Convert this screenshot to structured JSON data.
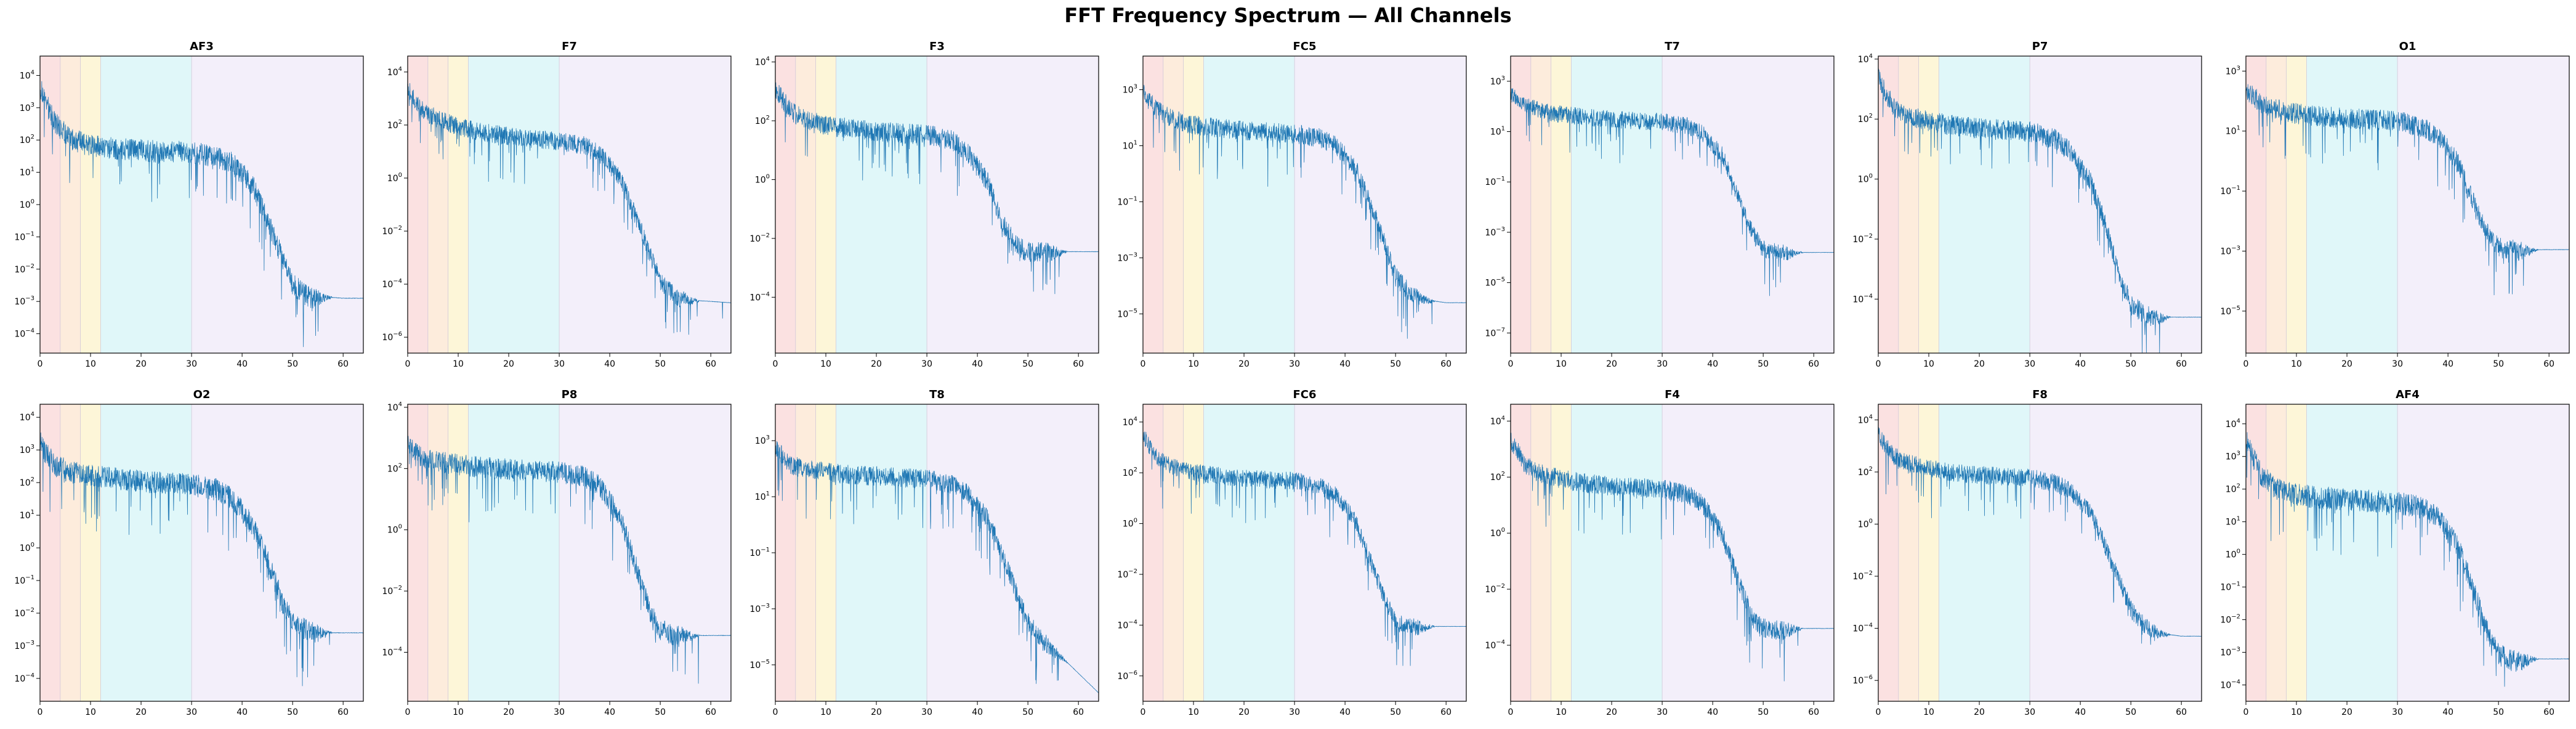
{
  "figure": {
    "title": "FFT Frequency Spectrum — All Channels"
  },
  "chart_data": {
    "type": "line",
    "yscale": "log",
    "xlim": [
      0,
      64
    ],
    "xticks": [
      0,
      10,
      20,
      30,
      40,
      50,
      60
    ],
    "grid": false,
    "line_color": "#1f77b4",
    "band_shading": [
      {
        "from": 0,
        "to": 4,
        "color": "#fbe1e1"
      },
      {
        "from": 4,
        "to": 8,
        "color": "#fdecdc"
      },
      {
        "from": 8,
        "to": 12,
        "color": "#fdf6d8"
      },
      {
        "from": 12,
        "to": 30,
        "color": "#e0f7f9"
      },
      {
        "from": 30,
        "to": 64,
        "color": "#f3effa"
      }
    ],
    "profile_x": [
      0,
      1,
      3,
      6,
      10,
      15,
      20,
      25,
      30,
      35,
      38,
      42,
      45,
      48,
      50,
      53,
      56,
      60,
      64
    ],
    "panels": [
      {
        "title": "AF3",
        "ylim_exp": [
          -4.6,
          4.6
        ],
        "yticks_exp": [
          -4,
          -3,
          -2,
          -1,
          0,
          1,
          2,
          3,
          4
        ],
        "profile_log_y": [
          3.7,
          3.3,
          2.6,
          2.1,
          1.9,
          1.8,
          1.75,
          1.7,
          1.7,
          1.55,
          1.35,
          0.7,
          -0.4,
          -1.6,
          -2.4,
          -2.8,
          -2.85,
          -2.9,
          -2.9
        ],
        "noise": 0.35
      },
      {
        "title": "F7",
        "ylim_exp": [
          -6.6,
          4.6
        ],
        "yticks_exp": [
          -6,
          -4,
          -2,
          0,
          2,
          4
        ],
        "profile_log_y": [
          3.5,
          3.1,
          2.6,
          2.3,
          2.0,
          1.8,
          1.65,
          1.55,
          1.45,
          1.3,
          1.0,
          0.1,
          -1.3,
          -2.8,
          -3.8,
          -4.4,
          -4.6,
          -4.65,
          -4.7
        ],
        "noise": 0.35
      },
      {
        "title": "F3",
        "ylim_exp": [
          -5.9,
          4.2
        ],
        "yticks_exp": [
          -4,
          -2,
          0,
          2,
          4
        ],
        "profile_log_y": [
          3.2,
          2.9,
          2.4,
          2.1,
          1.9,
          1.8,
          1.7,
          1.65,
          1.6,
          1.4,
          1.0,
          0.0,
          -1.4,
          -2.2,
          -2.4,
          -2.4,
          -2.45,
          -2.45,
          -2.45
        ],
        "noise": 0.35
      },
      {
        "title": "FC5",
        "ylim_exp": [
          -6.4,
          4.2
        ],
        "yticks_exp": [
          -5,
          -3,
          -1,
          1,
          3
        ],
        "profile_log_y": [
          3.0,
          2.7,
          2.3,
          2.0,
          1.8,
          1.7,
          1.6,
          1.55,
          1.5,
          1.35,
          1.1,
          0.3,
          -1.0,
          -2.5,
          -3.6,
          -4.2,
          -4.5,
          -4.6,
          -4.6
        ],
        "noise": 0.35
      },
      {
        "title": "T7",
        "ylim_exp": [
          -7.8,
          4.0
        ],
        "yticks_exp": [
          -7,
          -5,
          -3,
          -1,
          1,
          3
        ],
        "profile_log_y": [
          2.6,
          2.4,
          2.1,
          1.9,
          1.75,
          1.65,
          1.55,
          1.5,
          1.45,
          1.3,
          1.0,
          0.1,
          -1.5,
          -3.0,
          -3.6,
          -3.75,
          -3.8,
          -3.8,
          -3.8
        ],
        "noise": 0.35
      },
      {
        "title": "P7",
        "ylim_exp": [
          -5.8,
          4.1
        ],
        "yticks_exp": [
          -4,
          -2,
          0,
          2,
          4
        ],
        "profile_log_y": [
          3.5,
          3.1,
          2.5,
          2.2,
          2.0,
          1.85,
          1.75,
          1.7,
          1.65,
          1.4,
          1.0,
          0.0,
          -1.5,
          -3.3,
          -4.1,
          -4.5,
          -4.6,
          -4.6,
          -4.6
        ],
        "noise": 0.35
      },
      {
        "title": "O1",
        "ylim_exp": [
          -6.4,
          3.5
        ],
        "yticks_exp": [
          -5,
          -3,
          -1,
          1,
          3
        ],
        "profile_log_y": [
          2.5,
          2.3,
          2.0,
          1.8,
          1.65,
          1.55,
          1.5,
          1.45,
          1.4,
          1.2,
          0.9,
          0.0,
          -1.3,
          -2.4,
          -2.8,
          -2.9,
          -2.95,
          -2.95,
          -2.95
        ],
        "noise": 0.35
      },
      {
        "title": "O2",
        "ylim_exp": [
          -4.7,
          4.4
        ],
        "yticks_exp": [
          -4,
          -3,
          -2,
          -1,
          0,
          1,
          2,
          3,
          4
        ],
        "profile_log_y": [
          3.3,
          3.0,
          2.6,
          2.4,
          2.3,
          2.2,
          2.1,
          2.05,
          2.0,
          1.85,
          1.6,
          0.8,
          -0.3,
          -1.6,
          -2.2,
          -2.5,
          -2.6,
          -2.6,
          -2.6
        ],
        "noise": 0.35
      },
      {
        "title": "P8",
        "ylim_exp": [
          -5.6,
          4.1
        ],
        "yticks_exp": [
          -4,
          -2,
          0,
          2,
          4
        ],
        "profile_log_y": [
          2.9,
          2.7,
          2.4,
          2.3,
          2.2,
          2.1,
          2.05,
          2.0,
          1.95,
          1.8,
          1.5,
          0.5,
          -1.0,
          -2.6,
          -3.2,
          -3.4,
          -3.45,
          -3.45,
          -3.45
        ],
        "noise": 0.35
      },
      {
        "title": "T8",
        "ylim_exp": [
          -6.3,
          4.3
        ],
        "yticks_exp": [
          -5,
          -3,
          -1,
          1,
          3
        ],
        "profile_log_y": [
          2.9,
          2.6,
          2.2,
          2.05,
          1.95,
          1.85,
          1.8,
          1.75,
          1.7,
          1.5,
          1.2,
          0.3,
          -1.0,
          -2.5,
          -3.4,
          -4.1,
          -4.6,
          -5.3,
          -6.0
        ],
        "noise": 0.35
      },
      {
        "title": "FC6",
        "ylim_exp": [
          -7.0,
          4.7
        ],
        "yticks_exp": [
          -6,
          -4,
          -2,
          0,
          2,
          4
        ],
        "profile_log_y": [
          3.6,
          3.2,
          2.6,
          2.3,
          2.1,
          1.95,
          1.85,
          1.8,
          1.75,
          1.55,
          1.2,
          0.2,
          -1.4,
          -3.0,
          -3.8,
          -4.0,
          -4.05,
          -4.05,
          -4.05
        ],
        "noise": 0.35
      },
      {
        "title": "F4",
        "ylim_exp": [
          -6.0,
          4.6
        ],
        "yticks_exp": [
          -4,
          -2,
          0,
          2,
          4
        ],
        "profile_log_y": [
          3.4,
          3.1,
          2.5,
          2.2,
          2.0,
          1.85,
          1.75,
          1.7,
          1.65,
          1.45,
          1.1,
          0.0,
          -1.6,
          -3.0,
          -3.3,
          -3.4,
          -3.4,
          -3.4,
          -3.4
        ],
        "noise": 0.35
      },
      {
        "title": "F8",
        "ylim_exp": [
          -6.8,
          4.6
        ],
        "yticks_exp": [
          -6,
          -4,
          -2,
          0,
          2,
          4
        ],
        "profile_log_y": [
          3.5,
          3.2,
          2.7,
          2.4,
          2.2,
          2.05,
          1.95,
          1.9,
          1.85,
          1.65,
          1.35,
          0.5,
          -0.8,
          -2.2,
          -3.2,
          -3.9,
          -4.2,
          -4.3,
          -4.3
        ],
        "noise": 0.35
      },
      {
        "title": "AF4",
        "ylim_exp": [
          -4.5,
          4.6
        ],
        "yticks_exp": [
          -4,
          -3,
          -2,
          -1,
          0,
          1,
          2,
          3,
          4
        ],
        "profile_log_y": [
          3.6,
          3.2,
          2.5,
          2.1,
          1.9,
          1.8,
          1.75,
          1.7,
          1.65,
          1.5,
          1.2,
          0.3,
          -1.0,
          -2.4,
          -3.0,
          -3.2,
          -3.2,
          -3.2,
          -3.2
        ],
        "noise": 0.35
      }
    ]
  }
}
